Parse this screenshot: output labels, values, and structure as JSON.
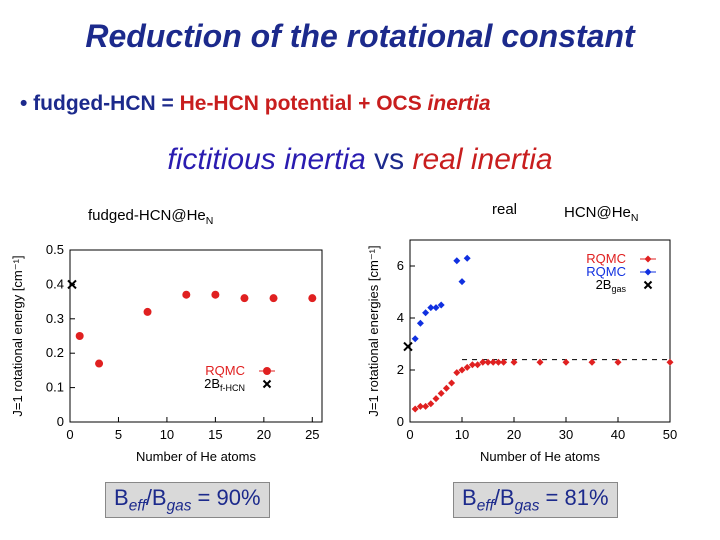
{
  "title": "Reduction of  the rotational constant",
  "bullet": {
    "lead": "• fudged-HCN = ",
    "red_part": "He-HCN potential + OCS ",
    "italic_part": "inertia"
  },
  "subtitle": {
    "left": "fictitious inertia",
    "vs": " vs ",
    "right": "real inertia"
  },
  "left_panel": {
    "label_main": "fudged-HCN@He",
    "label_sub": "N",
    "result_main": "B",
    "result_sub1": "eff",
    "result_mid": "/B",
    "result_sub2": "gas",
    "result_value": "  = 90%"
  },
  "right_panel": {
    "label_real": "real",
    "label_main": "HCN@He",
    "label_sub": "N",
    "result_main": "B",
    "result_sub1": "eff",
    "result_mid": "/B",
    "result_sub2": "gas",
    "result_value": "  = 81%"
  },
  "colors": {
    "title": "#1c2a8c",
    "red": "#e02020",
    "blue": "#1030e0",
    "box_bg": "#d9d9d9"
  },
  "chart_data": [
    {
      "type": "scatter",
      "xlabel": "Number of He atoms",
      "ylabel": "J=1 rotational energy [cm⁻¹]",
      "xlim": [
        0,
        26
      ],
      "ylim": [
        0,
        0.5
      ],
      "xticks": [
        0,
        5,
        10,
        15,
        20,
        25
      ],
      "yticks": [
        0,
        0.1,
        0.2,
        0.3,
        0.4,
        0.5
      ],
      "legend": [
        {
          "name": "RQMC",
          "color": "#e02020",
          "marker": "circle"
        },
        {
          "name": "2B",
          "sub": "f-HCN",
          "color": "#000000",
          "marker": "cross"
        }
      ],
      "series": [
        {
          "name": "RQMC",
          "color": "#e02020",
          "x": [
            1,
            3,
            8,
            12,
            15,
            18,
            21,
            25
          ],
          "y": [
            0.25,
            0.17,
            0.32,
            0.37,
            0.37,
            0.36,
            0.36,
            0.36
          ]
        }
      ],
      "reference": {
        "x": 0,
        "y": 0.4
      }
    },
    {
      "type": "scatter",
      "xlabel": "Number of He atoms",
      "ylabel": "J=1 rotational energies [cm⁻¹]",
      "xlim": [
        0,
        50
      ],
      "ylim": [
        0,
        7
      ],
      "xticks": [
        0,
        10,
        20,
        30,
        40,
        50
      ],
      "yticks": [
        0,
        2,
        4,
        6
      ],
      "legend": [
        {
          "name": "RQMC",
          "color": "#e02020",
          "marker": "diamond"
        },
        {
          "name": "RQMC",
          "color": "#1030e0",
          "marker": "diamond"
        },
        {
          "name": "2B",
          "sub": "gas",
          "color": "#000000",
          "marker": "cross"
        }
      ],
      "series": [
        {
          "name": "RQMC red",
          "color": "#e02020",
          "x": [
            1,
            2,
            3,
            4,
            5,
            6,
            7,
            8,
            9,
            10,
            11,
            12,
            13,
            14,
            15,
            16,
            17,
            18,
            20,
            25,
            30,
            35,
            40,
            50
          ],
          "y": [
            0.5,
            0.6,
            0.6,
            0.7,
            0.9,
            1.1,
            1.3,
            1.5,
            1.9,
            2.0,
            2.1,
            2.2,
            2.2,
            2.3,
            2.3,
            2.3,
            2.3,
            2.3,
            2.3,
            2.3,
            2.3,
            2.3,
            2.3,
            2.3
          ]
        },
        {
          "name": "RQMC blue",
          "color": "#1030e0",
          "x": [
            1,
            2,
            3,
            4,
            5,
            6,
            9,
            10,
            11
          ],
          "y": [
            3.2,
            3.8,
            4.2,
            4.4,
            4.4,
            4.5,
            6.2,
            5.4,
            6.3
          ]
        }
      ],
      "reference": {
        "x": 0,
        "y": 2.9
      },
      "dashed_level": 2.4
    }
  ]
}
